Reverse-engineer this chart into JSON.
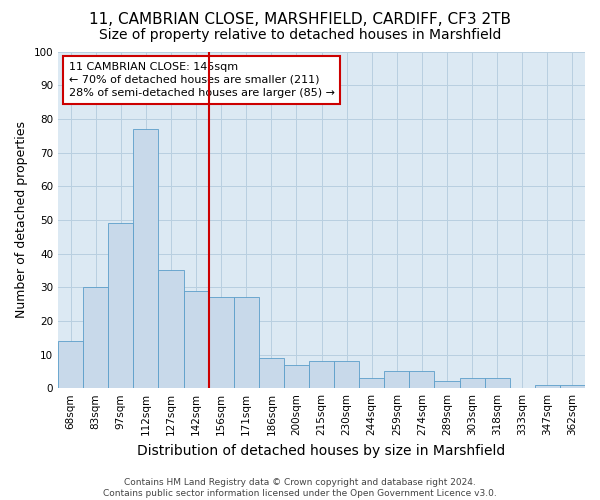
{
  "title1": "11, CAMBRIAN CLOSE, MARSHFIELD, CARDIFF, CF3 2TB",
  "title2": "Size of property relative to detached houses in Marshfield",
  "xlabel": "Distribution of detached houses by size in Marshfield",
  "ylabel": "Number of detached properties",
  "categories": [
    "68sqm",
    "83sqm",
    "97sqm",
    "112sqm",
    "127sqm",
    "142sqm",
    "156sqm",
    "171sqm",
    "186sqm",
    "200sqm",
    "215sqm",
    "230sqm",
    "244sqm",
    "259sqm",
    "274sqm",
    "289sqm",
    "303sqm",
    "318sqm",
    "333sqm",
    "347sqm",
    "362sqm"
  ],
  "values": [
    14,
    30,
    49,
    77,
    35,
    29,
    27,
    27,
    9,
    7,
    8,
    8,
    3,
    5,
    5,
    2,
    3,
    3,
    0,
    1,
    1
  ],
  "bar_color": "#c8d9ea",
  "bar_edge_color": "#5b9ec9",
  "vline_color": "#cc0000",
  "annotation_text": "11 CAMBRIAN CLOSE: 145sqm\n← 70% of detached houses are smaller (211)\n28% of semi-detached houses are larger (85) →",
  "annotation_box_color": "#cc0000",
  "ylim": [
    0,
    100
  ],
  "yticks": [
    0,
    10,
    20,
    30,
    40,
    50,
    60,
    70,
    80,
    90,
    100
  ],
  "grid_color": "#b8cfe0",
  "bg_color": "#dce9f3",
  "footnote": "Contains HM Land Registry data © Crown copyright and database right 2024.\nContains public sector information licensed under the Open Government Licence v3.0.",
  "title1_fontsize": 11,
  "title2_fontsize": 10,
  "xlabel_fontsize": 10,
  "ylabel_fontsize": 9,
  "tick_fontsize": 7.5,
  "annotation_fontsize": 8,
  "footnote_fontsize": 6.5
}
